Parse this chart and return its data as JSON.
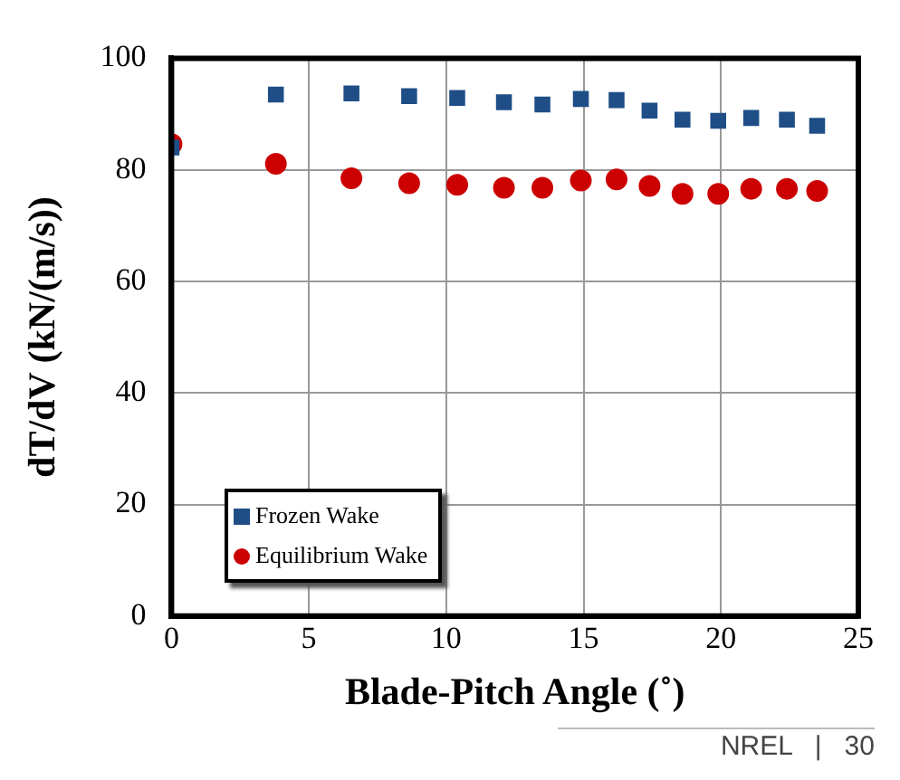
{
  "chart_data": {
    "type": "scatter",
    "xlabel": "Blade-Pitch Angle (˚)",
    "ylabel": "dT/dV (kN/(m/s))",
    "xlim": [
      0,
      25
    ],
    "xticks": [
      0,
      5,
      10,
      15,
      20,
      25
    ],
    "ylim": [
      0,
      100
    ],
    "yticks": [
      0,
      20,
      40,
      60,
      80,
      100
    ],
    "grid": true,
    "legend": "bottom left",
    "series": [
      {
        "name": "Frozen Wake",
        "color": "#1f4e87",
        "marker": "square",
        "x": [
          0,
          3.8,
          6.55,
          8.65,
          10.4,
          12.1,
          13.5,
          14.9,
          16.2,
          17.4,
          18.6,
          19.9,
          21.1,
          22.4,
          23.5
        ],
        "values": [
          84,
          93.5,
          93.7,
          93.2,
          92.9,
          92.1,
          91.7,
          92.7,
          92.5,
          90.6,
          89,
          88.8,
          89.3,
          89,
          87.9
        ]
      },
      {
        "name": "Equilibrium Wake",
        "color": "#cc0000",
        "marker": "circle",
        "x": [
          0,
          3.8,
          6.55,
          8.65,
          10.4,
          12.1,
          13.5,
          14.9,
          16.2,
          17.4,
          18.6,
          19.9,
          21.1,
          22.4,
          23.5
        ],
        "values": [
          84.6,
          81.1,
          78.5,
          77.6,
          77.3,
          76.8,
          76.8,
          78.1,
          78.3,
          77.1,
          75.7,
          75.7,
          76.6,
          76.6,
          76.2
        ]
      }
    ],
    "annotations": [
      "NREL   |   30"
    ]
  }
}
